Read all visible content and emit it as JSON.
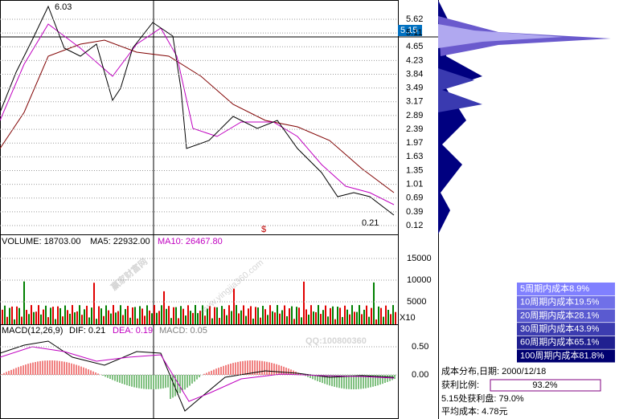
{
  "price_panel": {
    "high_label": "6.03",
    "low_label": "0.21",
    "current_price": "5.15",
    "marker": "$",
    "axis_ticks": [
      "5.62",
      "5.11",
      "4.65",
      "4.23",
      "3.84",
      "3.49",
      "3.17",
      "2.89",
      "2.39",
      "1.97",
      "1.63",
      "1.35",
      "1.01",
      "0.69",
      "0.39",
      "0.12"
    ]
  },
  "volume_panel": {
    "volume": "VOLUME: 18703.00",
    "ma5": "MA5: 22932.00",
    "ma10": "MA10: 26467.80",
    "axis_ticks": [
      "15000",
      "10000",
      "5000"
    ],
    "unit": "X10"
  },
  "macd_panel": {
    "name": "MACD(12,26,9)",
    "dif": "DIF: 0.21",
    "dea": "DEA: 0.19",
    "macd": "MACD: 0.05",
    "axis_ticks": [
      "0.50",
      "0.00"
    ]
  },
  "cost_panel": {
    "rows": [
      "5周期内成本8.9%",
      "10周期内成本19.5%",
      "20周期内成本28.1%",
      "30周期内成本43.9%",
      "60周期内成本65.1%",
      "100周期内成本81.8%"
    ],
    "date": "成本分布,日期: 2000/12/18",
    "profit_label": "获利比例:",
    "profit_value": "93.2%",
    "profit_at_price": "5.15处获利盘: 79.0%",
    "average_cost": "平均成本: 4.78元"
  },
  "watermark": {
    "qq": "QQ:100800360",
    "site_name": "赢家财富网",
    "url": "www.yingjia360.com"
  }
}
